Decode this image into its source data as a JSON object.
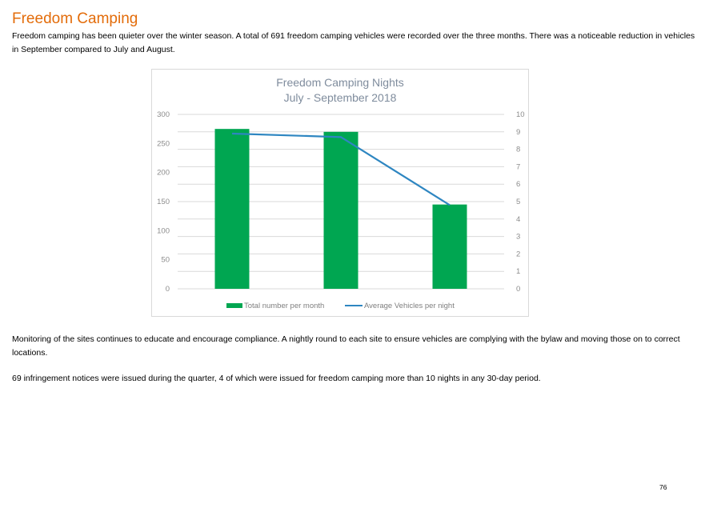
{
  "document": {
    "heading": "Freedom Camping",
    "paragraphs": [
      "Freedom camping has been quieter over the winter season. A total of 691 freedom camping vehicles were recorded over the three months. There was a noticeable reduction in vehicles in September compared to July and August.",
      "Monitoring of the sites continues to educate and encourage compliance. A nightly round to each site to ensure vehicles are complying with the bylaw and moving those on to correct locations.",
      "69 infringement notices were issued during the quarter, 4 of which were issued for freedom camping more than 10 nights in any 30-day period."
    ],
    "page_number": "76"
  },
  "colors": {
    "heading": "#e36c0a",
    "bar": "#00a651",
    "line": "#2e86c1",
    "grid": "#d9d9d9",
    "tick_text": "#8c8c8c",
    "chart_title": "#7f8c9d"
  },
  "chart_data": {
    "type": "bar",
    "title": "Freedom Camping Nights",
    "subtitle": "July - September 2018",
    "categories": [
      "",
      "",
      ""
    ],
    "series": [
      {
        "name": "Total number per month",
        "kind": "bar",
        "axis": "left",
        "values": [
          275,
          270,
          145
        ]
      },
      {
        "name": "Average Vehicles per night",
        "kind": "line",
        "axis": "right",
        "values": [
          8.9,
          8.7,
          4.8
        ]
      }
    ],
    "y_left": {
      "min": 0,
      "max": 300,
      "ticks": [
        "0",
        "50",
        "100",
        "150",
        "200",
        "250",
        "300"
      ]
    },
    "y_right": {
      "min": 0,
      "max": 10,
      "ticks": [
        "0",
        "1",
        "2",
        "3",
        "4",
        "5",
        "6",
        "7",
        "8",
        "9",
        "10"
      ]
    },
    "grid": true,
    "legend_position": "bottom"
  }
}
